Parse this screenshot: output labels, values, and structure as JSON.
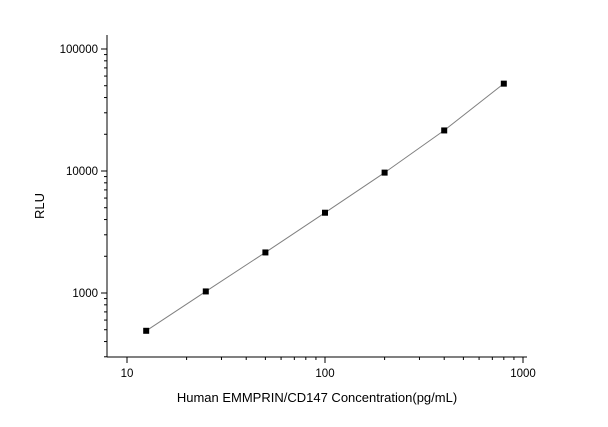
{
  "chart_data": {
    "type": "scatter",
    "title": "",
    "xlabel": "Human EMMPRIN/CD147 Concentration(pg/mL)",
    "ylabel": "RLU",
    "xscale": "log",
    "yscale": "log",
    "xlim": [
      10,
      1000
    ],
    "ylim": [
      300,
      100000
    ],
    "xticks": [
      10,
      100,
      1000
    ],
    "xtick_labels": [
      "10",
      "100",
      "1000"
    ],
    "yticks": [
      1000,
      10000,
      100000
    ],
    "ytick_labels": [
      "1000",
      "10000",
      "100000"
    ],
    "grid": false,
    "legend": "none",
    "series": [
      {
        "x": [
          12.5,
          25,
          50,
          100,
          200,
          400,
          800
        ],
        "y": [
          490,
          1030,
          2150,
          4550,
          9700,
          21500,
          52000
        ],
        "marker": "square",
        "fit_line": true
      }
    ],
    "colors": {
      "points": "#000000",
      "line": "#808080",
      "axes": "#000000"
    }
  }
}
